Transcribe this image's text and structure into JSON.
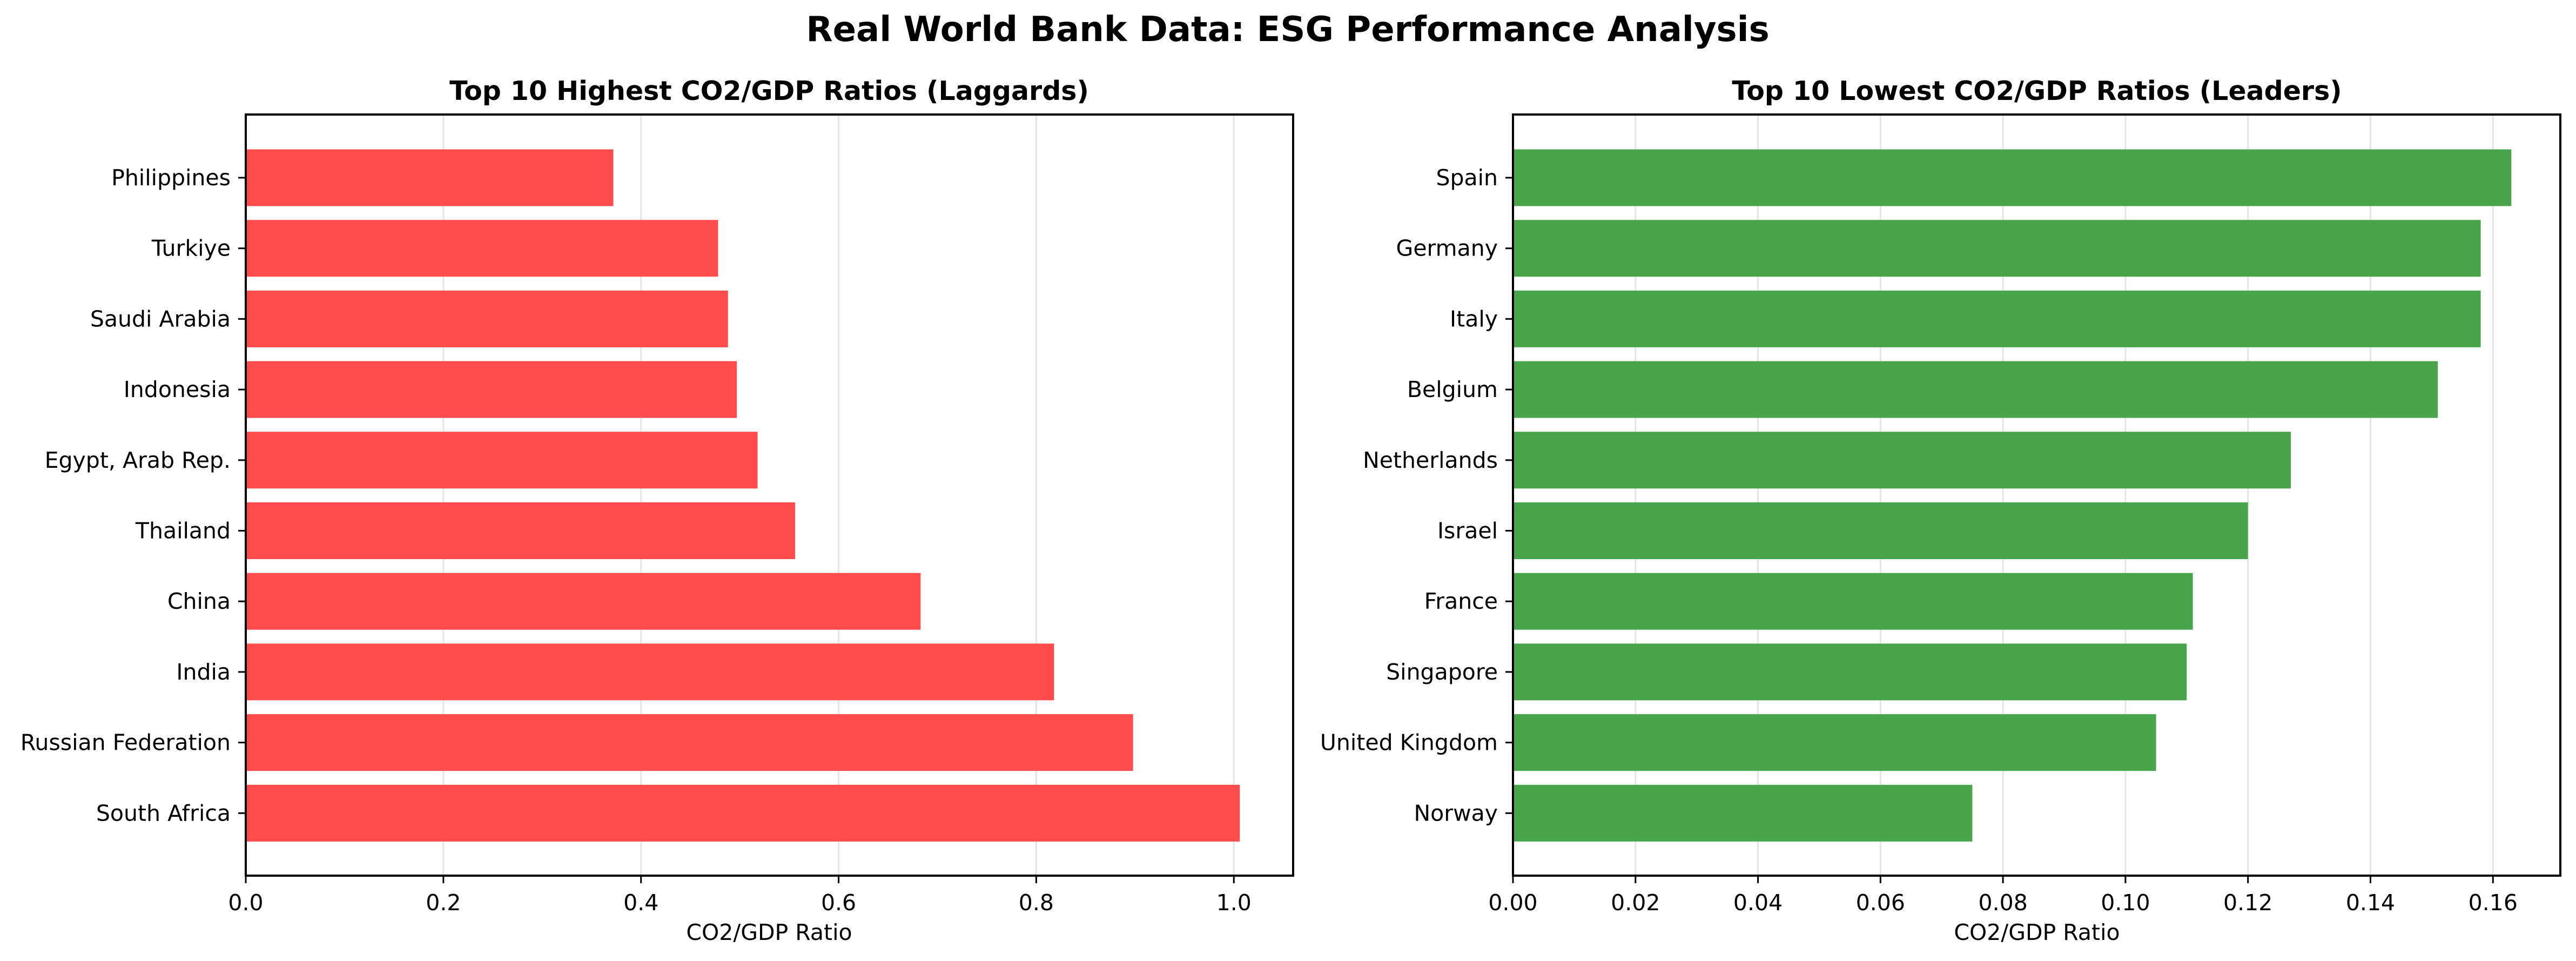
{
  "figure": {
    "title": "Real World Bank Data: ESG Performance Analysis"
  },
  "chart_data": [
    {
      "type": "bar",
      "orientation": "horizontal",
      "title": "Top 10 Highest CO2/GDP Ratios (Laggards)",
      "xlabel": "CO2/GDP Ratio",
      "ylabel": "",
      "xlim": [
        0,
        1.06
      ],
      "xticks": [
        0.0,
        0.2,
        0.4,
        0.6,
        0.8,
        1.0
      ],
      "xtick_labels": [
        "0.0",
        "0.2",
        "0.4",
        "0.6",
        "0.8",
        "1.0"
      ],
      "grid": "x",
      "color": "#ff4b4b",
      "categories": [
        "Philippines",
        "Turkiye",
        "Saudi Arabia",
        "Indonesia",
        "Egypt, Arab Rep.",
        "Thailand",
        "China",
        "India",
        "Russian Federation",
        "South Africa"
      ],
      "values": [
        0.372,
        0.478,
        0.488,
        0.497,
        0.518,
        0.556,
        0.683,
        0.818,
        0.898,
        1.006
      ]
    },
    {
      "type": "bar",
      "orientation": "horizontal",
      "title": "Top 10 Lowest CO2/GDP Ratios (Leaders)",
      "xlabel": "CO2/GDP Ratio",
      "ylabel": "",
      "xlim": [
        0,
        0.171
      ],
      "xticks": [
        0.0,
        0.02,
        0.04,
        0.06,
        0.08,
        0.1,
        0.12,
        0.14,
        0.16
      ],
      "xtick_labels": [
        "0.00",
        "0.02",
        "0.04",
        "0.06",
        "0.08",
        "0.10",
        "0.12",
        "0.14",
        "0.16"
      ],
      "grid": "x",
      "color": "#49a54b",
      "categories": [
        "Spain",
        "Germany",
        "Italy",
        "Belgium",
        "Netherlands",
        "Israel",
        "France",
        "Singapore",
        "United Kingdom",
        "Norway"
      ],
      "values": [
        0.163,
        0.158,
        0.158,
        0.151,
        0.127,
        0.12,
        0.111,
        0.11,
        0.105,
        0.075
      ]
    }
  ]
}
